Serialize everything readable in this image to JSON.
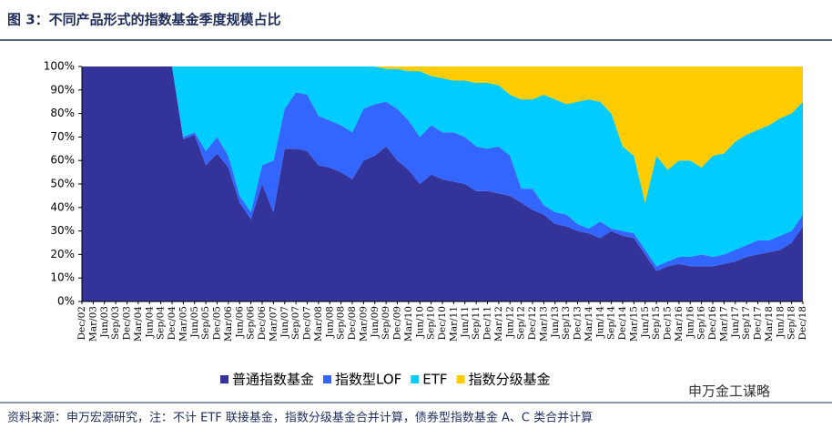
{
  "chart_data": {
    "type": "stacked_area",
    "title": "图 3：不同产品形式的指数基金季度规模占比",
    "source": "资料来源：申万宏源研究，注：不计 ETF 联接基金，指数分级基金合并计算，债券型指数基金 A、C 类合并计算",
    "watermark": "申万金工谋略",
    "categories": [
      "Dec/02",
      "Mar/03",
      "Jun/03",
      "Sep/03",
      "Dec/03",
      "Mar/04",
      "Jun/04",
      "Sep/04",
      "Dec/04",
      "Mar/05",
      "Jun/05",
      "Sep/05",
      "Dec/05",
      "Mar/06",
      "Jun/06",
      "Sep/06",
      "Dec/06",
      "Mar/07",
      "Jun/07",
      "Sep/07",
      "Dec/07",
      "Mar/08",
      "Jun/08",
      "Sep/08",
      "Dec/08",
      "Mar/09",
      "Jun/09",
      "Sep/09",
      "Dec/09",
      "Mar/10",
      "Jun/10",
      "Sep/10",
      "Dec/10",
      "Mar/11",
      "Jun/11",
      "Sep/11",
      "Dec/11",
      "Mar/12",
      "Jun/12",
      "Sep/12",
      "Dec/12",
      "Mar/13",
      "Jun/13",
      "Sep/13",
      "Dec/13",
      "Mar/14",
      "Jun/14",
      "Sep/14",
      "Dec/14",
      "Mar/15",
      "Jun/15",
      "Sep/15",
      "Dec/15",
      "Mar/16",
      "Jun/16",
      "Sep/16",
      "Dec/16",
      "Mar/17",
      "Jun/17",
      "Sep/17",
      "Dec/17",
      "Mar/18",
      "Jun/18",
      "Sep/18",
      "Dec/18"
    ],
    "series": [
      {
        "name": "普通指数基金",
        "color": "#333399",
        "values": [
          100,
          100,
          100,
          100,
          100,
          100,
          100,
          100,
          100,
          69,
          71,
          58,
          63,
          57,
          42,
          35,
          50,
          38,
          65,
          65,
          64,
          58,
          57,
          55,
          52,
          60,
          62,
          66,
          60,
          56,
          50,
          54,
          52,
          51,
          50,
          47,
          47,
          46,
          45,
          42,
          39,
          37,
          33,
          32,
          30,
          29,
          27,
          30,
          28,
          27,
          20,
          13,
          15,
          16,
          15,
          15,
          15,
          16,
          17,
          19,
          20,
          21,
          22,
          25,
          32
        ]
      },
      {
        "name": "指数型LOF",
        "color": "#3366ff",
        "values": [
          0,
          0,
          0,
          0,
          0,
          0,
          0,
          0,
          0,
          1,
          1,
          6,
          7,
          5,
          3,
          3,
          8,
          22,
          17,
          24,
          24,
          21,
          20,
          20,
          20,
          22,
          22,
          19,
          22,
          21,
          20,
          21,
          20,
          21,
          20,
          19,
          18,
          20,
          17,
          6,
          9,
          4,
          5,
          5,
          3,
          2,
          7,
          1,
          2,
          2,
          2,
          2,
          2,
          3,
          4,
          5,
          4,
          4,
          5,
          5,
          6,
          5,
          6,
          5,
          5
        ]
      },
      {
        "name": "ETF",
        "color": "#00ccff",
        "values": [
          0,
          0,
          0,
          0,
          0,
          0,
          0,
          0,
          0,
          30,
          28,
          36,
          30,
          38,
          55,
          62,
          42,
          40,
          18,
          11,
          12,
          21,
          23,
          25,
          28,
          18,
          16,
          14,
          17,
          21,
          28,
          21,
          23,
          22,
          24,
          27,
          28,
          26,
          26,
          38,
          38,
          47,
          48,
          47,
          52,
          55,
          51,
          49,
          36,
          33,
          20,
          47,
          39,
          41,
          41,
          37,
          43,
          43,
          46,
          47,
          47,
          49,
          50,
          50,
          48
        ]
      },
      {
        "name": "指数分级基金",
        "color": "#ffcc00",
        "values": [
          0,
          0,
          0,
          0,
          0,
          0,
          0,
          0,
          0,
          0,
          0,
          0,
          0,
          0,
          0,
          0,
          0,
          0,
          0,
          0,
          0,
          0,
          0,
          0,
          0,
          0,
          0,
          1,
          1,
          2,
          2,
          4,
          5,
          6,
          6,
          7,
          7,
          8,
          12,
          14,
          14,
          12,
          14,
          16,
          15,
          14,
          15,
          20,
          34,
          38,
          58,
          38,
          44,
          40,
          40,
          43,
          38,
          37,
          32,
          29,
          27,
          25,
          22,
          20,
          15
        ]
      }
    ],
    "ylim": [
      0,
      100
    ],
    "yticks": [
      {
        "value": 0,
        "label": "0%"
      },
      {
        "value": 10,
        "label": "10%"
      },
      {
        "value": 20,
        "label": "20%"
      },
      {
        "value": 30,
        "label": "30%"
      },
      {
        "value": 40,
        "label": "40%"
      },
      {
        "value": 50,
        "label": "50%"
      },
      {
        "value": 60,
        "label": "60%"
      },
      {
        "value": 70,
        "label": "70%"
      },
      {
        "value": 80,
        "label": "80%"
      },
      {
        "value": 90,
        "label": "90%"
      },
      {
        "value": 100,
        "label": "100%"
      }
    ],
    "legend": "bottom"
  }
}
